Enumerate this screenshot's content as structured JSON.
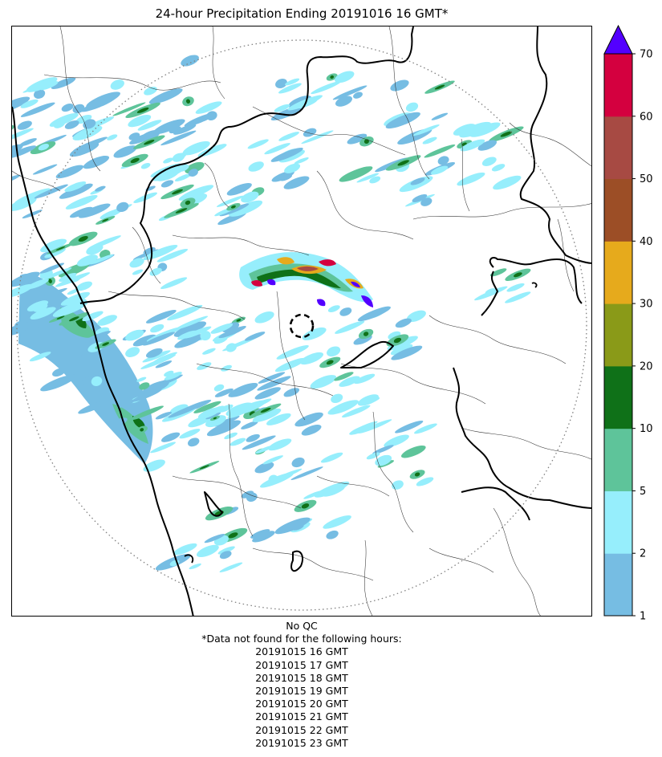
{
  "title": "24-hour Precipitation Ending 20191016 16 GMT*",
  "notes": {
    "qc": "No QC",
    "missing_header": "*Data not found for the following hours:",
    "missing_hours": [
      "20191015 16 GMT",
      "20191015 17 GMT",
      "20191015 18 GMT",
      "20191015 19 GMT",
      "20191015 20 GMT",
      "20191015 21 GMT",
      "20191015 22 GMT",
      "20191015 23 GMT"
    ]
  },
  "colorbar": {
    "levels": [
      1,
      2,
      5,
      10,
      20,
      30,
      40,
      50,
      60,
      70
    ],
    "tick_labels": [
      "1",
      "2",
      "5",
      "10",
      "20",
      "30",
      "40",
      "50",
      "60",
      "70"
    ],
    "colors": [
      "#76bde3",
      "#96eefc",
      "#5ec49a",
      "#0f7118",
      "#8a9a18",
      "#e6aa1c",
      "#9c4e26",
      "#a74a43",
      "#d4003f"
    ],
    "extend_color": "#5300ff",
    "extend": "max"
  },
  "map": {
    "range_ring": "dotted",
    "radar_site_marker": "dashed-circle",
    "features": [
      "coastline",
      "state-boundaries",
      "district-boundaries"
    ]
  }
}
